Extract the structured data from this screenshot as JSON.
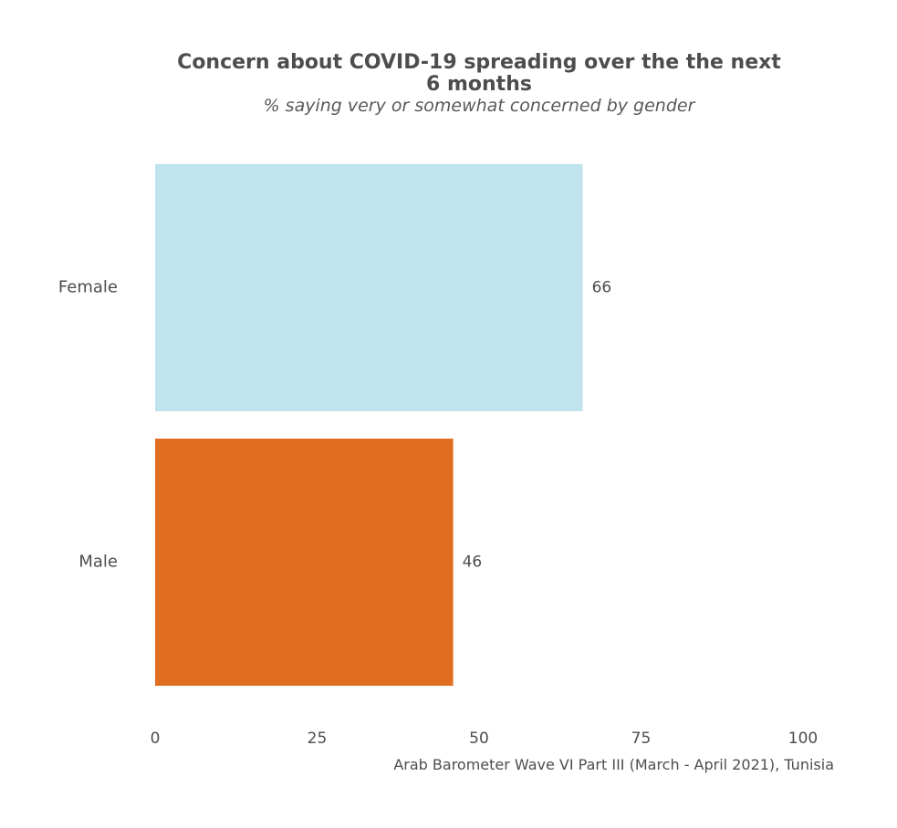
{
  "chart_data": {
    "type": "bar",
    "orientation": "horizontal",
    "title_line1": "Concern about COVID-19 spreading over the the next",
    "title_line2": "6 months",
    "subtitle": "% saying very or somewhat concerned by gender",
    "categories": [
      "Female",
      "Male"
    ],
    "values": [
      66,
      46
    ],
    "value_labels": [
      "66",
      "46"
    ],
    "colors": [
      "#c0e4ee",
      "#df6e21"
    ],
    "xlim": [
      0,
      100
    ],
    "x_ticks": [
      0,
      25,
      50,
      75,
      100
    ],
    "x_tick_labels": [
      "0",
      "25",
      "50",
      "75",
      "100"
    ],
    "grid": false,
    "legend": "none",
    "caption": "Arab Barometer Wave VI Part III (March - April 2021), Tunisia"
  }
}
